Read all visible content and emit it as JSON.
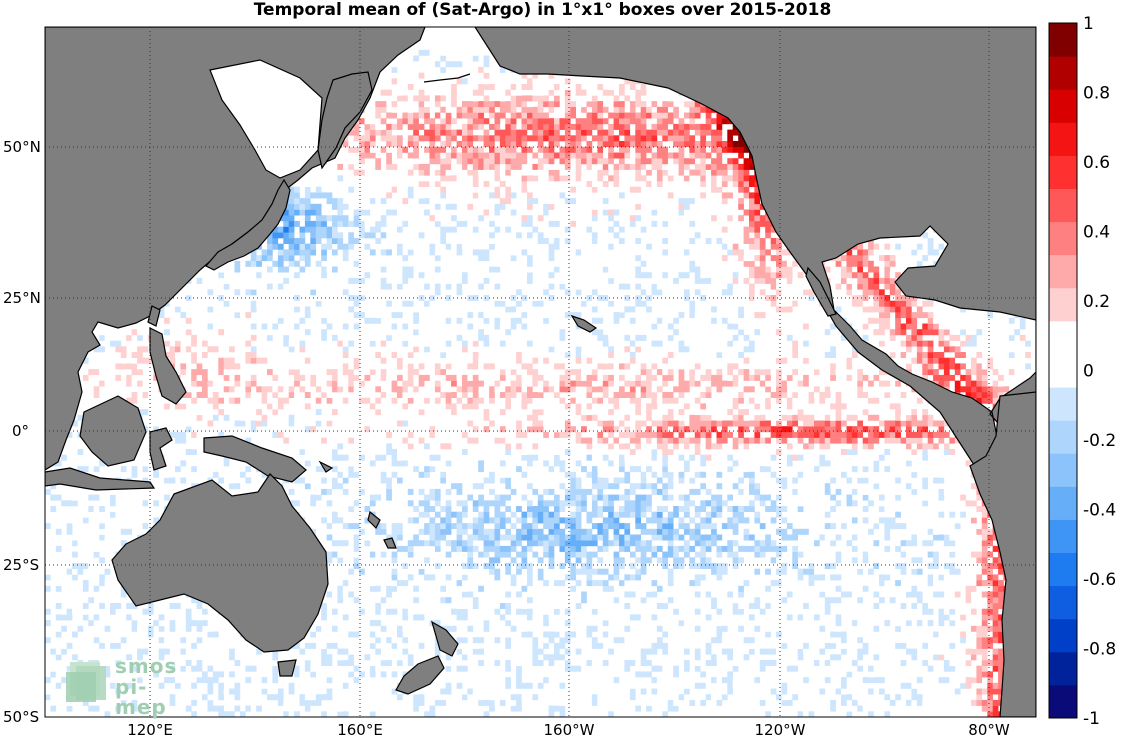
{
  "chart_data": {
    "type": "heatmap",
    "title": "Temporal mean of (Sat-Argo) in 1°x1° boxes over 2015-2018",
    "projection": "equirectangular, Pacific-centred",
    "lon_range": [
      103,
      286
    ],
    "lat_range": [
      -50,
      71
    ],
    "x_ticks": [
      "120°E",
      "160°E",
      "160°W",
      "120°W",
      "80°W"
    ],
    "y_ticks": [
      "50°N",
      "25°N",
      "0°",
      "25°S",
      "50°S"
    ],
    "grid": true,
    "land_color": "#7f7f7f",
    "colorbar": {
      "min": -1,
      "max": 1,
      "step": 0.1,
      "tick_labels": [
        "1",
        "0.8",
        "0.6",
        "0.4",
        "0.2",
        "0",
        "-0.2",
        "-0.4",
        "-0.6",
        "-0.8",
        "-1"
      ],
      "colors": [
        "#0a0a78",
        "#00229a",
        "#0040c8",
        "#0f5de0",
        "#1e7cf0",
        "#3f95f5",
        "#66aff8",
        "#8cc3fa",
        "#aed5fc",
        "#cde6fe",
        "#ffffff",
        "#ffffff",
        "#ffd0d0",
        "#ffaaaa",
        "#ff8080",
        "#ff5858",
        "#ff3030",
        "#f41414",
        "#d80000",
        "#b00000",
        "#800000"
      ]
    },
    "dominant_patterns": [
      {
        "region": "Subarctic North Pacific / Gulf of Alaska",
        "sign": "positive",
        "approx_value": 0.5
      },
      {
        "region": "Equatorial cold tongue (0°, 160°W–80°W)",
        "sign": "positive",
        "approx_value": 0.6
      },
      {
        "region": "ITCZ band (~8°N)",
        "sign": "positive",
        "approx_value": 0.2
      },
      {
        "region": "American west coast upwelling",
        "sign": "positive",
        "approx_value": 0.6
      },
      {
        "region": "Kuroshio off Japan",
        "sign": "negative",
        "approx_value": -0.5
      },
      {
        "region": "South Pacific subtropical gyre (~15°S, 170°W–130°W)",
        "sign": "negative",
        "approx_value": -0.3
      }
    ]
  },
  "logo": {
    "line1": "smos",
    "line2": "pi-mep"
  }
}
